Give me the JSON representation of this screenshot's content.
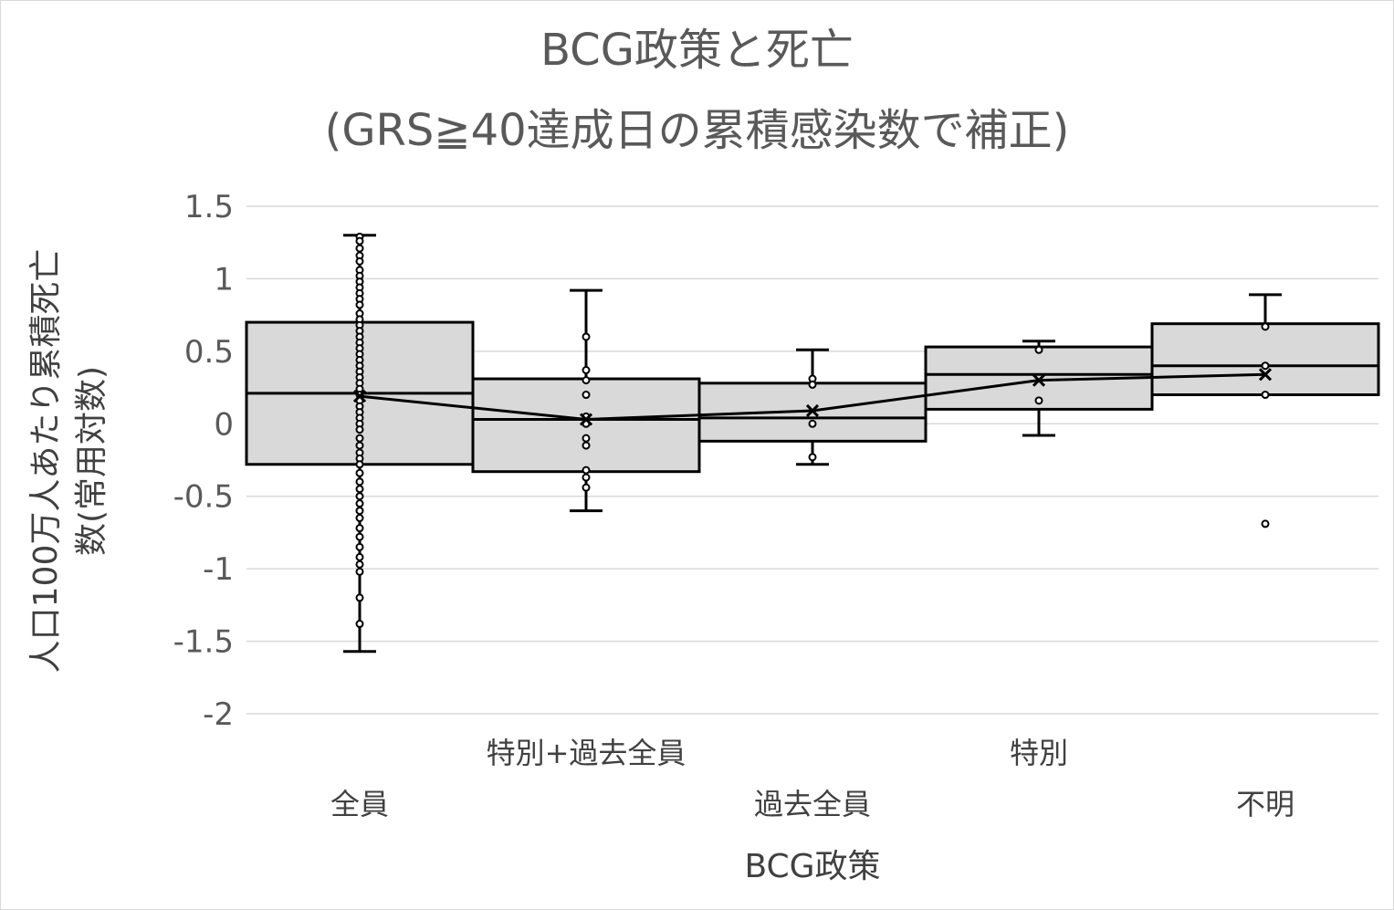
{
  "chart_data": {
    "type": "box",
    "title_lines": [
      "BCG政策と死亡",
      "(GRS≧40達成日の累積感染数で補正)"
    ],
    "xlabel": "BCG政策",
    "ylabel_lines": [
      "人口100万人あたり累積死亡",
      "数(常用対数)"
    ],
    "ylim": [
      -2,
      1.5
    ],
    "y_ticks": [
      {
        "value": 1.5,
        "label": "1.5"
      },
      {
        "value": 1,
        "label": "1"
      },
      {
        "value": 0.5,
        "label": "0.5"
      },
      {
        "value": 0,
        "label": "0"
      },
      {
        "value": -0.5,
        "label": "-0.5"
      },
      {
        "value": -1,
        "label": "-1"
      },
      {
        "value": -1.5,
        "label": "-1.5"
      },
      {
        "value": -2,
        "label": "-2"
      }
    ],
    "grid": true,
    "mean_line": true,
    "categories": [
      {
        "label": "全員",
        "whisker_low": -1.57,
        "q1": -0.28,
        "median": 0.21,
        "q3": 0.7,
        "whisker_high": 1.3,
        "mean": 0.19,
        "points": [
          1.29,
          1.26,
          1.21,
          1.16,
          1.12,
          1.06,
          1.02,
          0.98,
          0.94,
          0.9,
          0.86,
          0.82,
          0.76,
          0.72,
          0.68,
          0.64,
          0.6,
          0.56,
          0.52,
          0.48,
          0.44,
          0.4,
          0.36,
          0.32,
          0.28,
          0.24,
          0.2,
          0.16,
          0.12,
          0.08,
          0.04,
          0.0,
          -0.04,
          -0.1,
          -0.15,
          -0.2,
          -0.24,
          -0.28,
          -0.34,
          -0.4,
          -0.45,
          -0.5,
          -0.55,
          -0.6,
          -0.65,
          -0.72,
          -0.78,
          -0.85,
          -0.92,
          -0.97,
          -1.02,
          -1.2,
          -1.38
        ]
      },
      {
        "label": "特別+過去全員",
        "whisker_low": -0.6,
        "q1": -0.33,
        "median": 0.03,
        "q3": 0.31,
        "whisker_high": 0.92,
        "mean": 0.03,
        "points": [
          0.6,
          0.37,
          0.3,
          0.2,
          0.05,
          0.0,
          -0.1,
          -0.15,
          -0.32,
          -0.37,
          -0.44
        ]
      },
      {
        "label": "過去全員",
        "whisker_low": -0.28,
        "q1": -0.12,
        "median": 0.04,
        "q3": 0.28,
        "whisker_high": 0.51,
        "mean": 0.09,
        "points": [
          0.31,
          0.27,
          0.0,
          -0.23
        ]
      },
      {
        "label": "特別",
        "whisker_low": -0.08,
        "q1": 0.1,
        "median": 0.34,
        "q3": 0.53,
        "whisker_high": 0.57,
        "mean": 0.3,
        "points": [
          0.51,
          0.16
        ]
      },
      {
        "label": "不明",
        "whisker_low": 0.2,
        "q1": 0.2,
        "median": 0.4,
        "q3": 0.69,
        "whisker_high": 0.89,
        "mean": 0.34,
        "points": [
          0.67,
          0.4,
          0.2
        ],
        "outliers": [
          -0.69
        ]
      }
    ],
    "colors": {
      "box_fill": "#d9d9d9",
      "stroke": "#000000",
      "grid": "#d9d9d9",
      "text": "#595959"
    }
  }
}
